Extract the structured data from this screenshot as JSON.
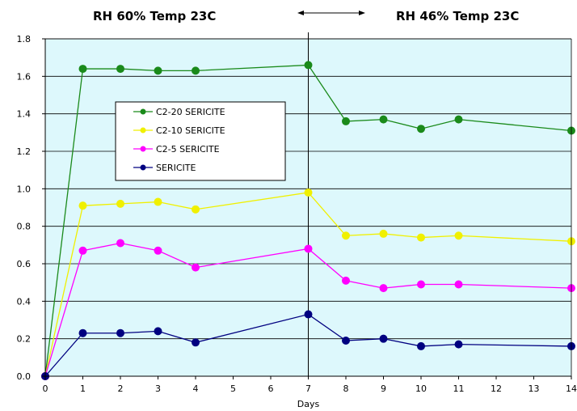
{
  "header": {
    "left": "RH 60% Temp 23C",
    "right": "RH 46% Temp 23C"
  },
  "chart_data": {
    "type": "line",
    "xlabel": "Days",
    "ylabel": "",
    "xlim": [
      0,
      14
    ],
    "ylim": [
      0,
      1.8
    ],
    "x_ticks": [
      0,
      1,
      2,
      3,
      4,
      5,
      6,
      7,
      8,
      9,
      10,
      11,
      12,
      13,
      14
    ],
    "y_ticks": [
      "0.0",
      "0.2",
      "0.4",
      "0.6",
      "0.8",
      "1.0",
      "1.2",
      "1.4",
      "1.6",
      "1.8"
    ],
    "y_tick_values": [
      0,
      0.2,
      0.4,
      0.6,
      0.8,
      1.0,
      1.2,
      1.4,
      1.6,
      1.8
    ],
    "divider_x": 7,
    "background": "#ddf8fc",
    "grid": true,
    "legend_position": "left-upper",
    "series": [
      {
        "name": "C2-20 SERICITE",
        "color": "#1a8a1a",
        "x": [
          0,
          1,
          2,
          3,
          4,
          7,
          8,
          9,
          10,
          11,
          14
        ],
        "values": [
          0,
          1.64,
          1.64,
          1.63,
          1.63,
          1.66,
          1.36,
          1.37,
          1.32,
          1.37,
          1.31
        ]
      },
      {
        "name": "C2-10 SERICITE",
        "color": "#f0f000",
        "x": [
          0,
          1,
          2,
          3,
          4,
          7,
          8,
          9,
          10,
          11,
          14
        ],
        "values": [
          0,
          0.91,
          0.92,
          0.93,
          0.89,
          0.98,
          0.75,
          0.76,
          0.74,
          0.75,
          0.72
        ]
      },
      {
        "name": "C2-5 SERICITE",
        "color": "#ff00ff",
        "x": [
          0,
          1,
          2,
          3,
          4,
          7,
          8,
          9,
          10,
          11,
          14
        ],
        "values": [
          0,
          0.67,
          0.71,
          0.67,
          0.58,
          0.68,
          0.51,
          0.47,
          0.49,
          0.49,
          0.47
        ]
      },
      {
        "name": "SERICITE",
        "color": "#000080",
        "x": [
          0,
          1,
          2,
          3,
          4,
          7,
          8,
          9,
          10,
          11,
          14
        ],
        "values": [
          0,
          0.23,
          0.23,
          0.24,
          0.18,
          0.33,
          0.19,
          0.2,
          0.16,
          0.17,
          0.16
        ]
      }
    ]
  }
}
